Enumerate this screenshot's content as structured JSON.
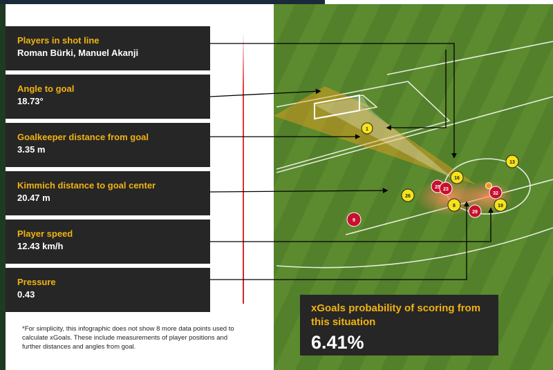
{
  "cards": [
    {
      "title": "Players in shot line",
      "value": "Roman Bürki, Manuel Akanji"
    },
    {
      "title": "Angle to goal",
      "value": "18.73°"
    },
    {
      "title": "Goalkeeper distance from goal",
      "value": "3.35 m"
    },
    {
      "title": "Kimmich distance to goal center",
      "value": "20.47 m"
    },
    {
      "title": "Player speed",
      "value": "12.43 km/h"
    },
    {
      "title": "Pressure",
      "value": "0.43"
    }
  ],
  "footnote": "*For simplicity, this infographic does not show 8 more data points used to calculate xGoals. These include measurements of player positions and further distances and angles from goal.",
  "xgoals": {
    "label": "xGoals probability of scoring from this situation",
    "value": "6.41%"
  },
  "players": {
    "yellow": [
      "1",
      "16",
      "26",
      "8",
      "19",
      "13"
    ],
    "red": [
      "25",
      "23",
      "32",
      "29",
      "9"
    ]
  },
  "colors": {
    "accent": "#f1b312",
    "card_bg": "#262626",
    "pitch": "#5c8a2e",
    "team_red": "#c8102e",
    "team_yellow": "#f7e21b"
  }
}
